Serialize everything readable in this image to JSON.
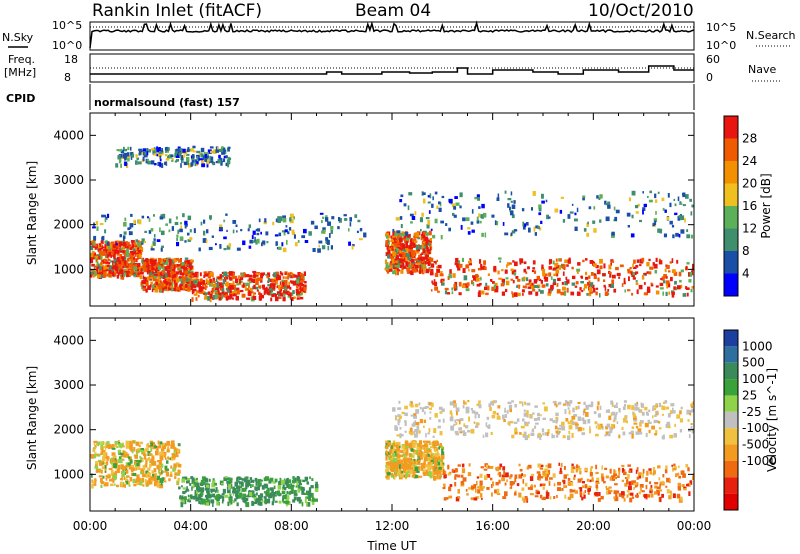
{
  "header": {
    "station": "Rankin Inlet (fitACF)",
    "beam": "Beam 04",
    "date": "10/Oct/2010"
  },
  "strips": {
    "nsky_label": "N.Sky",
    "nsearch_label": "N.Search",
    "freq_label_line1": "Freq.",
    "freq_label_line2": "[MHz]",
    "nave_label": "Nave",
    "cpid_label": "CPID",
    "cpid_value": "normalsound (fast) 157",
    "noise_left_ticks": [
      "10^5",
      "10^0"
    ],
    "noise_right_ticks": [
      "10^5",
      "10^0"
    ],
    "freq_ticks": [
      "18",
      "8"
    ],
    "nave_ticks": [
      "60",
      "0"
    ]
  },
  "chart_data": [
    {
      "type": "heatmap",
      "title": "",
      "xlabel": "",
      "ylabel": "Slant Range [km]",
      "xlim": [
        "00:00",
        "00:00"
      ],
      "ylim": [
        180,
        4500
      ],
      "x_ticks": [
        "00:00",
        "04:00",
        "08:00",
        "12:00",
        "16:00",
        "20:00",
        "00:00"
      ],
      "y_ticks": [
        1000,
        2000,
        3000,
        4000
      ],
      "colorbar": {
        "label": "Power [dB]",
        "range": [
          0,
          30
        ],
        "tick_labels": [
          "28",
          "24",
          "20",
          "16",
          "12",
          "8",
          "4"
        ],
        "colors": [
          "#0000ff",
          "#1a4fa8",
          "#3f8f6f",
          "#5cb05a",
          "#f0c020",
          "#f39000",
          "#f05a00",
          "#e8160f"
        ]
      },
      "regions": [
        {
          "t": [
            0.0,
            2.0
          ],
          "r": [
            800,
            1600
          ],
          "level": "high"
        },
        {
          "t": [
            2.0,
            4.0
          ],
          "r": [
            500,
            1200
          ],
          "level": "high"
        },
        {
          "t": [
            4.0,
            8.5
          ],
          "r": [
            300,
            900
          ],
          "level": "high"
        },
        {
          "t": [
            11.7,
            13.5
          ],
          "r": [
            900,
            1800
          ],
          "level": "high"
        },
        {
          "t": [
            13.5,
            24.0
          ],
          "r": [
            400,
            1200
          ],
          "level": "high"
        },
        {
          "t": [
            0.0,
            11.0
          ],
          "r": [
            1400,
            2200
          ],
          "level": "low"
        },
        {
          "t": [
            12.0,
            24.0
          ],
          "r": [
            1700,
            2700
          ],
          "level": "low"
        },
        {
          "t": [
            1.0,
            5.5
          ],
          "r": [
            3300,
            3700
          ],
          "level": "low"
        }
      ]
    },
    {
      "type": "heatmap",
      "title": "",
      "xlabel": "Time UT",
      "ylabel": "Slant Range [km]",
      "xlim": [
        "00:00",
        "00:00"
      ],
      "ylim": [
        180,
        4500
      ],
      "x_ticks": [
        "00:00",
        "04:00",
        "08:00",
        "12:00",
        "16:00",
        "20:00",
        "00:00"
      ],
      "y_ticks": [
        1000,
        2000,
        3000,
        4000
      ],
      "colorbar": {
        "label": "Velocity [m s^-1]",
        "tick_labels": [
          "1000",
          "500",
          "100",
          "25",
          "-25",
          "-100",
          "-500",
          "-1000"
        ],
        "colors": [
          "#1d3fa0",
          "#2f6f9f",
          "#3a8a5a",
          "#3aa23a",
          "#8ed34a",
          "#c0c0c0",
          "#f0c040",
          "#f39a20",
          "#ef6a10",
          "#e82010",
          "#e00000"
        ]
      },
      "regions": [
        {
          "t": [
            0.0,
            3.5
          ],
          "r": [
            700,
            1700
          ],
          "level": "negative"
        },
        {
          "t": [
            3.5,
            9.0
          ],
          "r": [
            300,
            900
          ],
          "level": "positive"
        },
        {
          "t": [
            11.7,
            14.0
          ],
          "r": [
            900,
            1700
          ],
          "level": "negative"
        },
        {
          "t": [
            14.0,
            24.0
          ],
          "r": [
            400,
            1200
          ],
          "level": "strong-negative"
        },
        {
          "t": [
            12.0,
            24.0
          ],
          "r": [
            1800,
            2600
          ],
          "level": "near-zero"
        }
      ]
    }
  ]
}
